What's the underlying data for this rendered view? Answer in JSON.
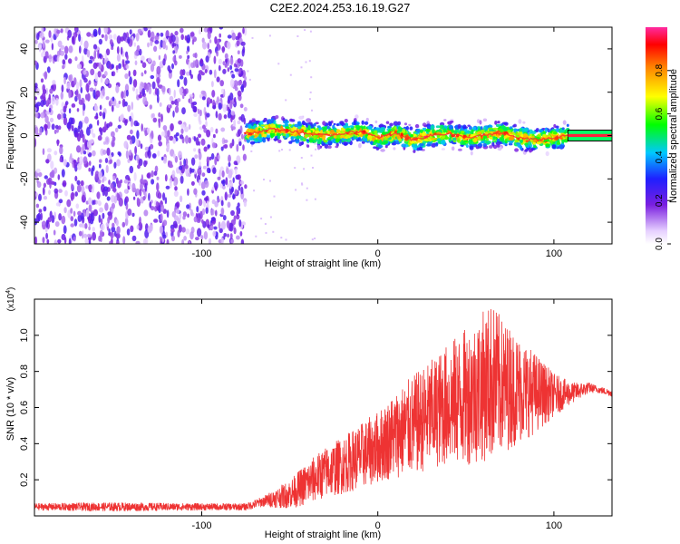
{
  "title": "C2E2.2024.253.16.19.G27",
  "colors": {
    "spectrum_noise": "#7a3cdc",
    "spectrum_ridge": "#ff2a2a",
    "snr_line": "#ee3333",
    "frame": "#000000"
  },
  "chart_data": [
    {
      "type": "heatmap",
      "title": "C2E2.2024.253.16.19.G27",
      "xlabel": "Height of straight line (km)",
      "ylabel": "Frequency (Hz)",
      "xlim": [
        -195,
        133
      ],
      "ylim": [
        -50,
        50
      ],
      "xticks": [
        -100,
        0,
        100
      ],
      "xtick_labels": [
        "-100",
        "0",
        "100"
      ],
      "yticks": [
        -40,
        -20,
        0,
        20,
        40
      ],
      "ytick_labels": [
        "-40",
        "-20",
        "0",
        "20",
        "40"
      ],
      "colorbar": {
        "label": "Normalized spectral amplitude",
        "range": [
          0,
          1
        ],
        "ticks": [
          0.0,
          0.2,
          0.4,
          0.6,
          0.8
        ],
        "tick_labels": [
          "0.0",
          "0.2",
          "0.4",
          "0.6",
          "0.8"
        ]
      },
      "regions": [
        {
          "x": [
            -195,
            -75
          ],
          "freq": [
            -50,
            50
          ],
          "amplitude": [
            0.05,
            0.25
          ]
        },
        {
          "x": [
            -75,
            108
          ],
          "freq": [
            -8,
            8
          ],
          "amplitude": [
            0.3,
            1.0
          ]
        },
        {
          "x": [
            108,
            133
          ],
          "freq": [
            -1,
            1
          ],
          "amplitude": [
            0.9,
            1.0
          ]
        }
      ],
      "ridge": {
        "x": [
          -72,
          -60,
          -50,
          -40,
          -30,
          -20,
          -10,
          0,
          10,
          20,
          30,
          40,
          50,
          60,
          70,
          80,
          90,
          100,
          108,
          120,
          133
        ],
        "freq": [
          1,
          3,
          2,
          1,
          0,
          1,
          2,
          -1,
          1,
          -2,
          0,
          1,
          -1,
          0,
          1,
          -1,
          -2,
          -1,
          0,
          0,
          0
        ]
      }
    },
    {
      "type": "line",
      "xlabel": "Height of straight line (km)",
      "ylabel": "SNR (10 * v/v)",
      "y_multiplier": "(x10",
      "y_multiplier_exp": "4",
      "y_multiplier_close": ")",
      "xlim": [
        -195,
        133
      ],
      "ylim": [
        0,
        1.2
      ],
      "xticks": [
        -100,
        0,
        100
      ],
      "xtick_labels": [
        "-100",
        "0",
        "100"
      ],
      "yticks": [
        0.2,
        0.4,
        0.6,
        0.8,
        1.0
      ],
      "ytick_labels": [
        "0.2",
        "0.4",
        "0.6",
        "0.8",
        "1.0"
      ],
      "series": [
        {
          "x": [
            -195,
            -150,
            -100,
            -75,
            -65,
            -50,
            -40,
            -30,
            -20,
            -10,
            0,
            10,
            20,
            30,
            40,
            50,
            60,
            65,
            70,
            80,
            90,
            100,
            110,
            120,
            125,
            133
          ],
          "mean": [
            0.05,
            0.05,
            0.05,
            0.05,
            0.08,
            0.12,
            0.18,
            0.24,
            0.28,
            0.33,
            0.38,
            0.45,
            0.5,
            0.56,
            0.62,
            0.66,
            0.72,
            0.75,
            0.72,
            0.7,
            0.68,
            0.67,
            0.68,
            0.71,
            0.7,
            0.68
          ],
          "spread": [
            0.02,
            0.025,
            0.02,
            0.02,
            0.03,
            0.08,
            0.12,
            0.14,
            0.16,
            0.18,
            0.2,
            0.24,
            0.28,
            0.3,
            0.34,
            0.38,
            0.42,
            0.44,
            0.38,
            0.3,
            0.22,
            0.12,
            0.06,
            0.03,
            0.02,
            0.02
          ]
        }
      ]
    }
  ]
}
